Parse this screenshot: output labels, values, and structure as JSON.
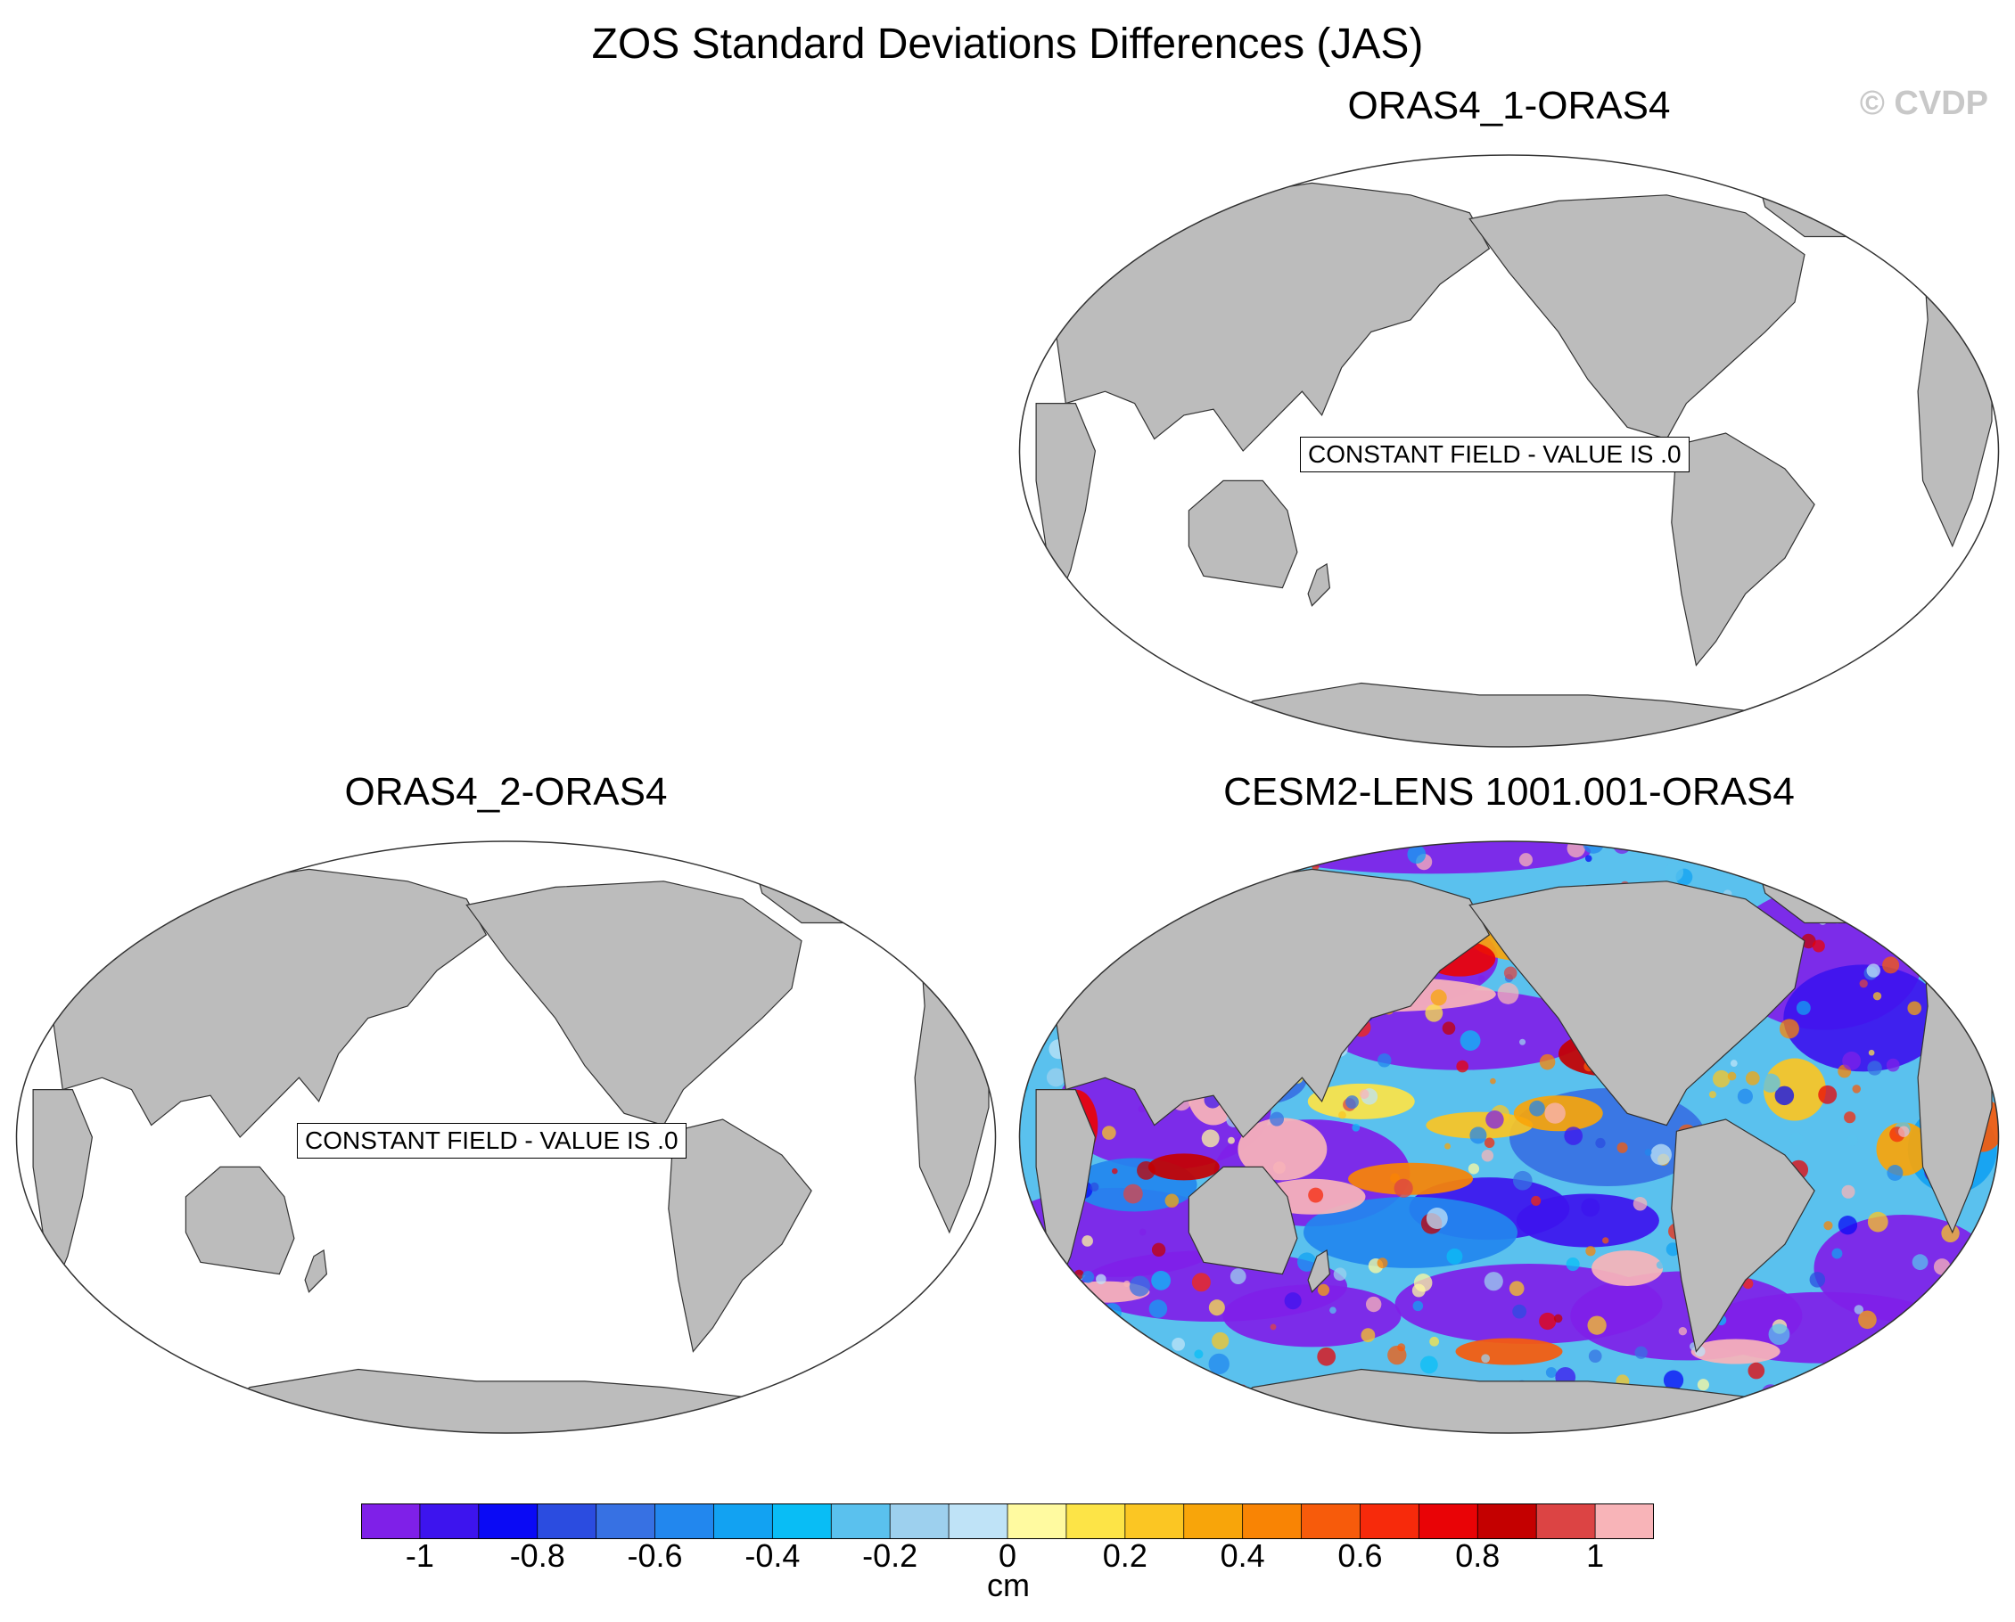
{
  "title": "ZOS Standard Deviations Differences (JAS)",
  "watermark": "© CVDP",
  "panels": [
    {
      "id": "p1",
      "title": "ORAS4_1-ORAS4",
      "constant_label": "CONSTANT FIELD - VALUE IS .0",
      "filled": false
    },
    {
      "id": "p2",
      "title": "ORAS4_2-ORAS4",
      "constant_label": "CONSTANT FIELD - VALUE IS .0",
      "filled": false
    },
    {
      "id": "p3",
      "title": "CESM2-LENS 1001.001-ORAS4",
      "constant_label": "",
      "filled": true
    }
  ],
  "colorbar": {
    "unit": "cm",
    "tick_labels": [
      "-1",
      "-0.8",
      "-0.6",
      "-0.4",
      "-0.2",
      "0",
      "0.2",
      "0.4",
      "0.6",
      "0.8",
      "1"
    ],
    "colors": [
      "#7f20e8",
      "#3d14ee",
      "#0a0af5",
      "#2b4ce0",
      "#3771e3",
      "#2287ee",
      "#12a2f2",
      "#09bdf5",
      "#5ac1ee",
      "#9dd0ee",
      "#bfe3f7",
      "#fffaa0",
      "#fde447",
      "#fbc623",
      "#f8a50a",
      "#f98404",
      "#f75b0b",
      "#f72a0b",
      "#e90306",
      "#c40000",
      "#dc4444",
      "#f8b4b8"
    ]
  },
  "colors": {
    "land": "#bcbcbc",
    "ocean": "#ffffff",
    "outline": "#333333"
  }
}
